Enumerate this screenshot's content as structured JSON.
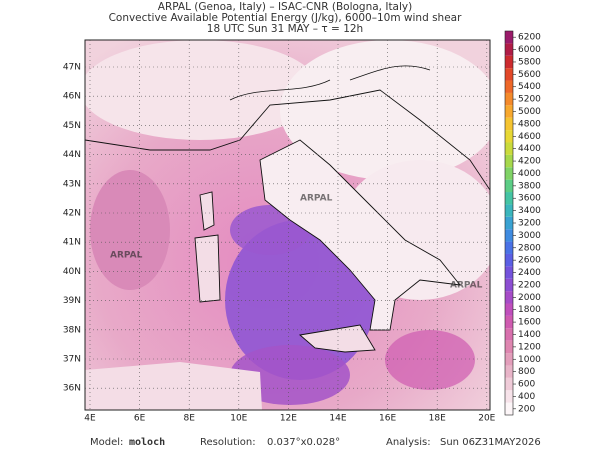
{
  "header": {
    "lines": [
      "ARPAL (Genoa, Italy)  –  ISAC-CNR (Bologna, Italy)",
      "Convective Available Potential Energy (J/kg), 6000–10m wind shear",
      "18 UTC Sun 31 MAY  –  τ = 12h"
    ]
  },
  "map": {
    "lat_labels": [
      "47N",
      "46N",
      "45N",
      "44N",
      "43N",
      "42N",
      "41N",
      "40N",
      "39N",
      "38N",
      "37N",
      "36N"
    ],
    "lon_labels": [
      "4E",
      "6E",
      "8E",
      "10E",
      "12E",
      "14E",
      "16E",
      "18E",
      "20E"
    ],
    "watermark": "ARPAL"
  },
  "colorbar": {
    "ticks": [
      200,
      400,
      600,
      800,
      1000,
      1200,
      1400,
      1600,
      1800,
      2000,
      2200,
      2400,
      2600,
      2800,
      3000,
      3200,
      3400,
      3600,
      3800,
      4000,
      4200,
      4400,
      4600,
      4800,
      5000,
      5200,
      5400,
      5600,
      5800,
      6000,
      6200
    ],
    "colors": [
      "#fdf6f8",
      "#f7e3ea",
      "#efcbd8",
      "#e8b4c8",
      "#e39ebb",
      "#de86b0",
      "#d870ad",
      "#cf5bb0",
      "#c04fbc",
      "#a64cc8",
      "#8c4ed2",
      "#7453dc",
      "#5b5fe4",
      "#4a72e6",
      "#3f8be0",
      "#3aa2d2",
      "#3bb6bd",
      "#44c4a4",
      "#5ccd86",
      "#80d366",
      "#a6d84c",
      "#cadb3c",
      "#e7d835",
      "#f5c431",
      "#f7a82e",
      "#f48a2b",
      "#ee6829",
      "#e24829",
      "#cc2a2e",
      "#b01c46",
      "#9a1b6a"
    ]
  },
  "footer": {
    "model_label": "Model:",
    "model": "moloch",
    "resolution_label": "Resolution:",
    "resolution": "0.037°x0.028°",
    "analysis_label": "Analysis:",
    "analysis": "Sun 06Z31MAY2026"
  }
}
